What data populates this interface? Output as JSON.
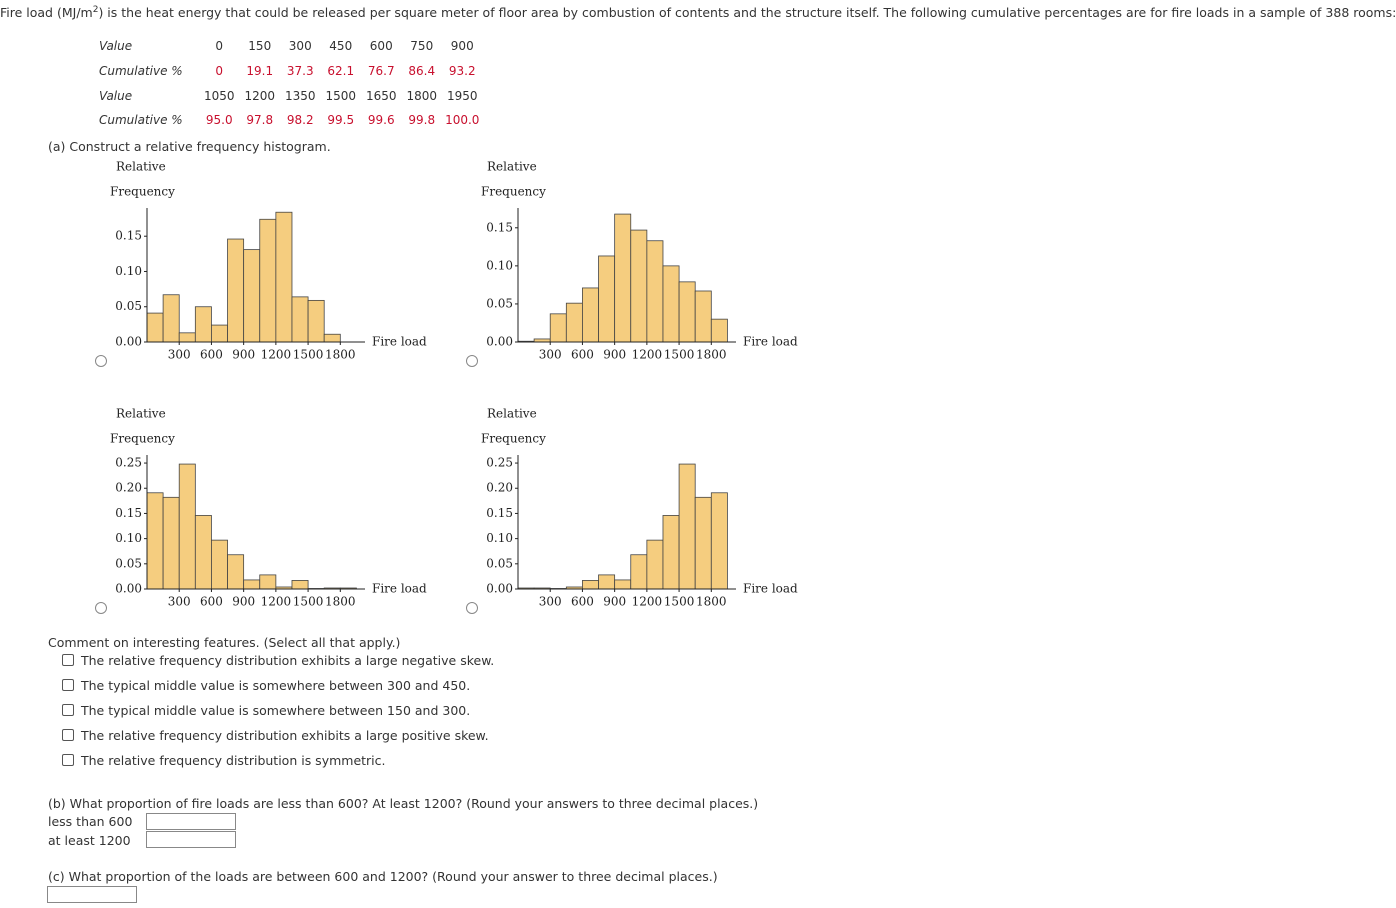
{
  "intro": {
    "before": "Fire load (MJ/m",
    "sup": "2",
    "after": ") is the heat energy that could be released per square meter of floor area by combustion of contents and the structure itself. The following cumulative percentages are for fire loads in a sample of 388 rooms:"
  },
  "table": {
    "rows": [
      {
        "label": "Value",
        "cells": [
          "0",
          "150",
          "300",
          "450",
          "600",
          "750",
          "900"
        ]
      },
      {
        "label": "Cumulative %",
        "cells": [
          "0",
          "19.1",
          "37.3",
          "62.1",
          "76.7",
          "86.4",
          "93.2"
        ]
      },
      {
        "label": "Value",
        "cells": [
          "1050",
          "1200",
          "1350",
          "1500",
          "1650",
          "1800",
          "1950"
        ]
      },
      {
        "label": "Cumulative %",
        "cells": [
          "95.0",
          "97.8",
          "98.2",
          "99.5",
          "99.6",
          "99.8",
          "100.0"
        ]
      }
    ]
  },
  "part_a": {
    "prompt": "(a) Construct a relative frequency histogram.",
    "histograms": [
      {
        "type": "histogram",
        "ylabel": [
          "Relative",
          "Frequency"
        ],
        "xlabel": "Fire load",
        "color": "#f5cd7f",
        "bins": [
          0,
          150,
          300,
          450,
          600,
          750,
          900,
          1050,
          1200,
          1350,
          1500,
          1650,
          1800,
          1950
        ],
        "values": [
          0.041,
          0.067,
          0.013,
          0.05,
          0.024,
          0.146,
          0.131,
          0.174,
          0.184,
          0.064,
          0.059,
          0.011,
          0
        ],
        "xlim": [
          0,
          2030
        ],
        "xticks": [
          300,
          600,
          900,
          1200,
          1500,
          1800
        ],
        "ylim": [
          0,
          0.19
        ],
        "yticks": [
          {
            "value": 0,
            "label": "0.00"
          },
          {
            "value": 0.05,
            "label": "0.05"
          },
          {
            "value": 0.1,
            "label": "0.10"
          },
          {
            "value": 0.15,
            "label": "0.15"
          }
        ]
      },
      {
        "type": "histogram",
        "ylabel": [
          "Relative",
          "Frequency"
        ],
        "xlabel": "Fire load",
        "color": "#f5cd7f",
        "bins": [
          0,
          150,
          300,
          450,
          600,
          750,
          900,
          1050,
          1200,
          1350,
          1500,
          1650,
          1800,
          1950
        ],
        "values": [
          0.001,
          0.004,
          0.037,
          0.051,
          0.071,
          0.113,
          0.168,
          0.147,
          0.133,
          0.1,
          0.079,
          0.067,
          0.03
        ],
        "xlim": [
          0,
          2030
        ],
        "xticks": [
          300,
          600,
          900,
          1200,
          1500,
          1800
        ],
        "ylim": [
          0,
          0.176
        ],
        "yticks": [
          {
            "value": 0,
            "label": "0.00"
          },
          {
            "value": 0.05,
            "label": "0.05"
          },
          {
            "value": 0.1,
            "label": "0.10"
          },
          {
            "value": 0.15,
            "label": "0.15"
          }
        ]
      },
      {
        "type": "histogram",
        "ylabel": [
          "Relative",
          "Frequency"
        ],
        "xlabel": "Fire load",
        "color": "#f5cd7f",
        "bins": [
          0,
          150,
          300,
          450,
          600,
          750,
          900,
          1050,
          1200,
          1350,
          1500,
          1650,
          1800,
          1950
        ],
        "values": [
          0.191,
          0.182,
          0.248,
          0.146,
          0.097,
          0.068,
          0.018,
          0.028,
          0.004,
          0.017,
          0.001,
          0.002,
          0.002
        ],
        "xlim": [
          0,
          2030
        ],
        "xticks": [
          300,
          600,
          900,
          1200,
          1500,
          1800
        ],
        "ylim": [
          0,
          0.266
        ],
        "yticks": [
          {
            "value": 0,
            "label": "0.00"
          },
          {
            "value": 0.05,
            "label": "0.05"
          },
          {
            "value": 0.1,
            "label": "0.10"
          },
          {
            "value": 0.15,
            "label": "0.15"
          },
          {
            "value": 0.2,
            "label": "0.20"
          },
          {
            "value": 0.25,
            "label": "0.25"
          }
        ]
      },
      {
        "type": "histogram",
        "ylabel": [
          "Relative",
          "Frequency"
        ],
        "xlabel": "Fire load",
        "color": "#f5cd7f",
        "bins": [
          0,
          150,
          300,
          450,
          600,
          750,
          900,
          1050,
          1200,
          1350,
          1500,
          1650,
          1800,
          1950
        ],
        "values": [
          0.002,
          0.002,
          0.001,
          0.004,
          0.017,
          0.028,
          0.018,
          0.068,
          0.097,
          0.146,
          0.248,
          0.182,
          0.191
        ],
        "xlim": [
          0,
          2030
        ],
        "xticks": [
          300,
          600,
          900,
          1200,
          1500,
          1800
        ],
        "ylim": [
          0,
          0.266
        ],
        "yticks": [
          {
            "value": 0,
            "label": "0.00"
          },
          {
            "value": 0.05,
            "label": "0.05"
          },
          {
            "value": 0.1,
            "label": "0.10"
          },
          {
            "value": 0.15,
            "label": "0.15"
          },
          {
            "value": 0.2,
            "label": "0.20"
          },
          {
            "value": 0.25,
            "label": "0.25"
          }
        ]
      }
    ]
  },
  "comment": {
    "prompt": "Comment on interesting features. (Select all that apply.)",
    "options": [
      "The relative frequency distribution exhibits a large negative skew.",
      "The typical middle value is somewhere between 300 and 450.",
      "The typical middle value is somewhere between 150 and 300.",
      "The relative frequency distribution exhibits a large positive skew.",
      "The relative frequency distribution is symmetric."
    ]
  },
  "part_b": {
    "prompt": "(b) What proportion of fire loads are less than 600? At least 1200? (Round your answers to three decimal places.)",
    "fields": [
      "less than 600",
      "at least 1200"
    ]
  },
  "part_c": {
    "prompt": "(c) What proportion of the loads are between 600 and 1200? (Round your answer to three decimal places.)"
  }
}
